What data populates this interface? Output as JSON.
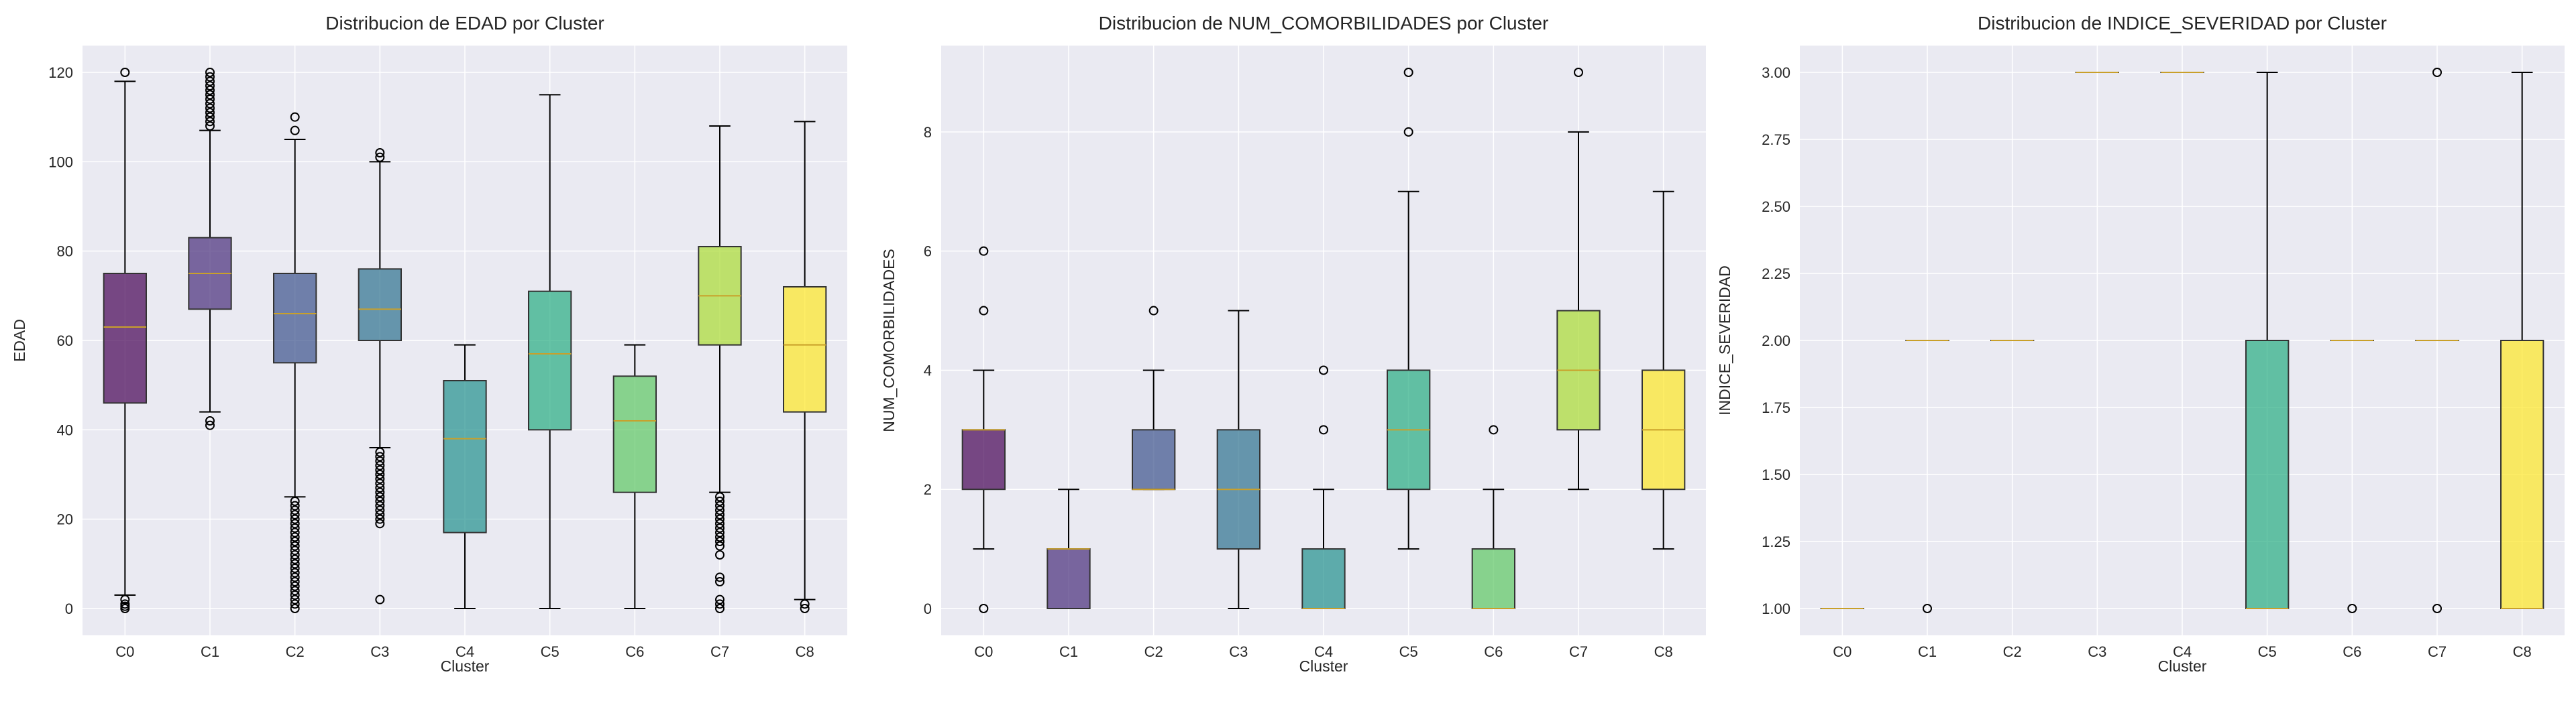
{
  "chart_data": [
    {
      "type": "boxplot",
      "title": "Distribucion de EDAD por Cluster",
      "xlabel": "Cluster",
      "ylabel": "EDAD",
      "ylim": [
        -6,
        126
      ],
      "yticks": [
        0,
        20,
        40,
        60,
        80,
        100,
        120
      ],
      "ytick_decimals": 0,
      "grid": true,
      "categories": [
        "C0",
        "C1",
        "C2",
        "C3",
        "C4",
        "C5",
        "C6",
        "C7",
        "C8"
      ],
      "boxes": [
        {
          "q1": 46,
          "median": 63,
          "q3": 75,
          "whislo": 3,
          "whishi": 118,
          "fliers": [
            120,
            2,
            1,
            0.5,
            0
          ]
        },
        {
          "q1": 67,
          "median": 75,
          "q3": 83,
          "whislo": 44,
          "whishi": 107,
          "fliers": [
            108,
            109,
            110,
            111,
            112,
            113,
            114,
            115,
            116,
            117,
            118,
            119,
            120,
            42,
            41
          ]
        },
        {
          "q1": 55,
          "median": 66,
          "q3": 75,
          "whislo": 25,
          "whishi": 105,
          "fliers": [
            107,
            110,
            24,
            23,
            22,
            21,
            20,
            19,
            18,
            17,
            16,
            15,
            14,
            13,
            12,
            11,
            10,
            9,
            8,
            7,
            6,
            5,
            4,
            3,
            2,
            1,
            0
          ]
        },
        {
          "q1": 60,
          "median": 67,
          "q3": 76,
          "whislo": 36,
          "whishi": 100,
          "fliers": [
            101,
            102,
            35,
            34,
            33,
            32,
            31,
            30,
            29,
            28,
            27,
            26,
            25,
            24,
            23,
            22,
            21,
            20,
            19,
            2
          ]
        },
        {
          "q1": 17,
          "median": 38,
          "q3": 51,
          "whislo": 0,
          "whishi": 59,
          "fliers": []
        },
        {
          "q1": 40,
          "median": 57,
          "q3": 71,
          "whislo": 0,
          "whishi": 115,
          "fliers": []
        },
        {
          "q1": 26,
          "median": 42,
          "q3": 52,
          "whislo": 0,
          "whishi": 59,
          "fliers": []
        },
        {
          "q1": 59,
          "median": 70,
          "q3": 81,
          "whislo": 26,
          "whishi": 108,
          "fliers": [
            25,
            24,
            23,
            22,
            21,
            20,
            19,
            18,
            17,
            16,
            15,
            14,
            12,
            7,
            6,
            2,
            1,
            0
          ]
        },
        {
          "q1": 44,
          "median": 59,
          "q3": 72,
          "whislo": 2,
          "whishi": 109,
          "fliers": [
            1,
            0
          ]
        }
      ]
    },
    {
      "type": "boxplot",
      "title": "Distribucion de NUM_COMORBILIDADES por Cluster",
      "xlabel": "Cluster",
      "ylabel": "NUM_COMORBILIDADES",
      "ylim": [
        -0.45,
        9.45
      ],
      "yticks": [
        0,
        2,
        4,
        6,
        8
      ],
      "ytick_decimals": 0,
      "grid": true,
      "categories": [
        "C0",
        "C1",
        "C2",
        "C3",
        "C4",
        "C5",
        "C6",
        "C7",
        "C8"
      ],
      "boxes": [
        {
          "q1": 2,
          "median": 3,
          "q3": 3,
          "whislo": 1,
          "whishi": 4,
          "fliers": [
            5,
            6,
            0
          ]
        },
        {
          "q1": 0,
          "median": 1,
          "q3": 1,
          "whislo": 0,
          "whishi": 2,
          "fliers": []
        },
        {
          "q1": 2,
          "median": 2,
          "q3": 3,
          "whislo": 2,
          "whishi": 4,
          "fliers": [
            5
          ]
        },
        {
          "q1": 1,
          "median": 2,
          "q3": 3,
          "whislo": 0,
          "whishi": 5,
          "fliers": []
        },
        {
          "q1": 0,
          "median": 0,
          "q3": 1,
          "whislo": 0,
          "whishi": 2,
          "fliers": [
            3,
            4
          ]
        },
        {
          "q1": 2,
          "median": 3,
          "q3": 4,
          "whislo": 1,
          "whishi": 7,
          "fliers": [
            8,
            9
          ]
        },
        {
          "q1": 0,
          "median": 0,
          "q3": 1,
          "whislo": 0,
          "whishi": 2,
          "fliers": [
            3
          ]
        },
        {
          "q1": 3,
          "median": 4,
          "q3": 5,
          "whislo": 2,
          "whishi": 8,
          "fliers": [
            9
          ]
        },
        {
          "q1": 2,
          "median": 3,
          "q3": 4,
          "whislo": 1,
          "whishi": 7,
          "fliers": []
        }
      ]
    },
    {
      "type": "boxplot",
      "title": "Distribucion de INDICE_SEVERIDAD por Cluster",
      "xlabel": "Cluster",
      "ylabel": "INDICE_SEVERIDAD",
      "ylim": [
        0.9,
        3.1
      ],
      "yticks": [
        1.0,
        1.25,
        1.5,
        1.75,
        2.0,
        2.25,
        2.5,
        2.75,
        3.0
      ],
      "ytick_decimals": 2,
      "grid": true,
      "categories": [
        "C0",
        "C1",
        "C2",
        "C3",
        "C4",
        "C5",
        "C6",
        "C7",
        "C8"
      ],
      "boxes": [
        {
          "q1": 1,
          "median": 1,
          "q3": 1,
          "whislo": 1,
          "whishi": 1,
          "fliers": []
        },
        {
          "q1": 2,
          "median": 2,
          "q3": 2,
          "whislo": 2,
          "whishi": 2,
          "fliers": [
            1
          ]
        },
        {
          "q1": 2,
          "median": 2,
          "q3": 2,
          "whislo": 2,
          "whishi": 2,
          "fliers": []
        },
        {
          "q1": 3,
          "median": 3,
          "q3": 3,
          "whislo": 3,
          "whishi": 3,
          "fliers": []
        },
        {
          "q1": 3,
          "median": 3,
          "q3": 3,
          "whislo": 3,
          "whishi": 3,
          "fliers": []
        },
        {
          "q1": 1,
          "median": 1,
          "q3": 2,
          "whislo": 1,
          "whishi": 3,
          "fliers": []
        },
        {
          "q1": 2,
          "median": 2,
          "q3": 2,
          "whislo": 2,
          "whishi": 2,
          "fliers": [
            1
          ]
        },
        {
          "q1": 2,
          "median": 2,
          "q3": 2,
          "whislo": 2,
          "whishi": 2,
          "fliers": [
            3,
            1
          ]
        },
        {
          "q1": 1,
          "median": 1,
          "q3": 2,
          "whislo": 1,
          "whishi": 3,
          "fliers": []
        }
      ]
    }
  ],
  "colors": {
    "boxes": [
      "#440154",
      "#472c7a",
      "#3b518b",
      "#2c718e",
      "#21908d",
      "#27ad81",
      "#5cc863",
      "#aadc32",
      "#fde725"
    ],
    "median": "#c9a02a",
    "axes_background": "#eaeaf2",
    "grid": "#ffffff"
  }
}
